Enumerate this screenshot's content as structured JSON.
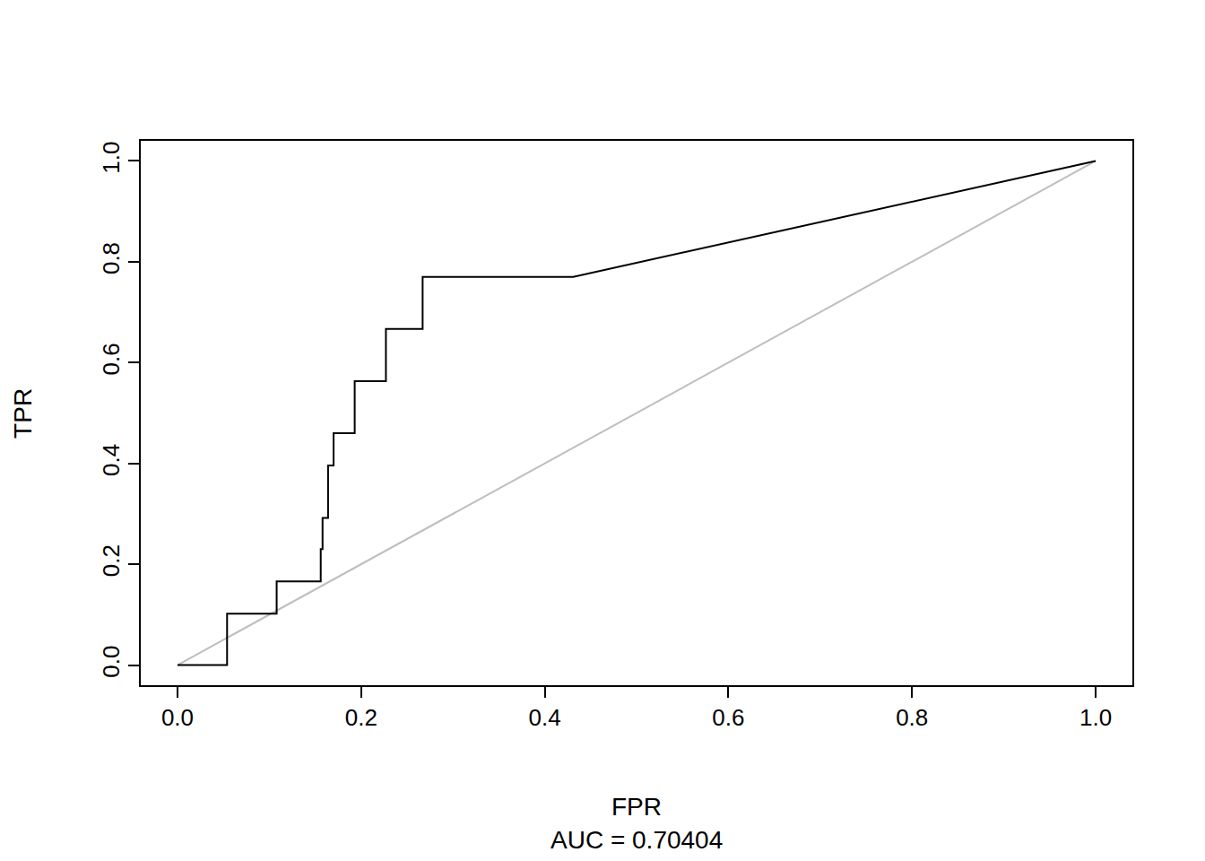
{
  "chart_data": {
    "type": "line",
    "xlabel": "FPR",
    "ylabel": "TPR",
    "subtitle": "AUC = 0.70404",
    "series": [
      {
        "color": "#000000",
        "x": [
          0,
          0.054,
          0.054,
          0.108,
          0.108,
          0.156,
          0.156,
          0.158,
          0.158,
          0.164,
          0.164,
          0.17,
          0.17,
          0.193,
          0.193,
          0.227,
          0.227,
          0.267,
          0.267,
          0.431,
          1
        ],
        "values": [
          0,
          0,
          0.102,
          0.102,
          0.166,
          0.166,
          0.23,
          0.23,
          0.292,
          0.292,
          0.396,
          0.396,
          0.46,
          0.46,
          0.563,
          0.563,
          0.667,
          0.667,
          0.77,
          0.77,
          1
        ]
      },
      {
        "color": "#bebebe",
        "x": [
          0,
          1
        ],
        "values": [
          0,
          1
        ]
      }
    ],
    "xlim": [
      -0.04,
      1.04
    ],
    "ylim": [
      -0.04,
      1.04
    ],
    "xticks": [
      {
        "value": 0,
        "label": "0.0"
      },
      0.2,
      0.4,
      0.6,
      0.8,
      {
        "value": 1,
        "label": "1.0"
      }
    ],
    "yticks": [
      {
        "value": 0,
        "label": "0.0"
      },
      0.2,
      0.4,
      0.6,
      0.8,
      {
        "value": 1,
        "label": "1.0"
      }
    ],
    "grid": false
  }
}
